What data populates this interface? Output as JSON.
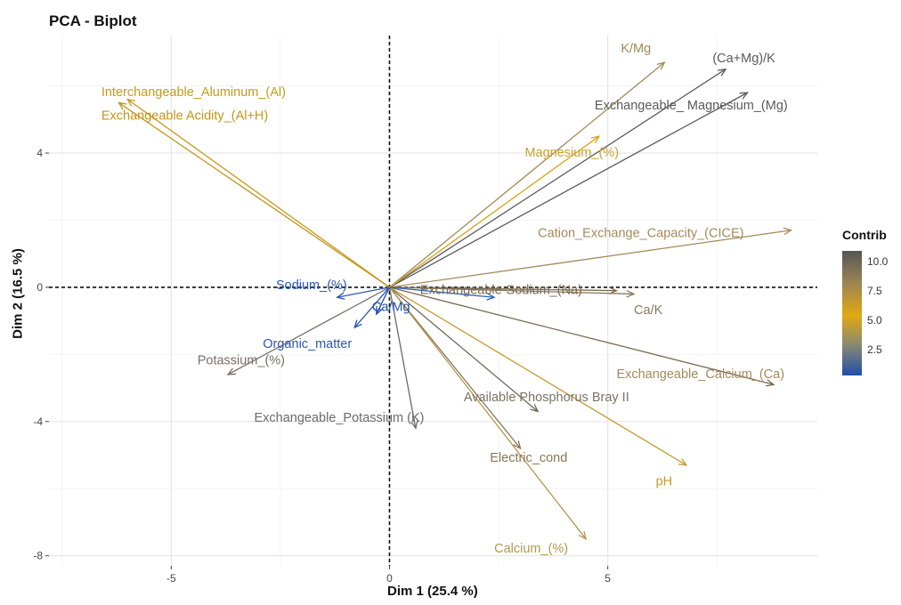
{
  "chart_data": {
    "type": "scatter",
    "title": "PCA - Biplot",
    "xlabel": "Dim 1 (25.4 %)",
    "ylabel": "Dim 2 (16.5 %)",
    "xlim": [
      -7.8,
      9.8
    ],
    "ylim": [
      -8.3,
      7.5
    ],
    "xticks": [
      -5,
      0,
      5
    ],
    "yticks": [
      -8,
      -4,
      0,
      4
    ],
    "grid": true,
    "legend": {
      "title": "Contrib",
      "placement": "right",
      "ticks": [
        "10.0",
        "7.5",
        "5.0",
        "2.5"
      ],
      "tick_values": [
        10.0,
        7.5,
        5.0,
        2.5
      ],
      "range": [
        0.4,
        11.0
      ]
    },
    "vectors": [
      {
        "label": "K/Mg",
        "x": 6.3,
        "y": 6.7,
        "contrib": 7.2,
        "color": "#a08a58"
      },
      {
        "label": "(Ca+Mg)/K",
        "x": 7.7,
        "y": 6.5,
        "contrib": 10.6,
        "color": "#5a5a5a"
      },
      {
        "label": "Exchangeable_ Magnesium_(Mg)",
        "x": 8.2,
        "y": 5.8,
        "contrib": 10.3,
        "color": "#5a5a5a"
      },
      {
        "label": "Magnesium_(%)",
        "x": 4.8,
        "y": 4.5,
        "contrib": 5.6,
        "color": "#d4a41a"
      },
      {
        "label": "Cation_Exchange_Capacity_(CICE)",
        "x": 9.2,
        "y": 1.7,
        "contrib": 7.8,
        "color": "#a58a58"
      },
      {
        "label": "Exchangeable-Sodium_(Na)",
        "x": 5.2,
        "y": -0.1,
        "contrib": 9.5,
        "color": "#7b6a50"
      },
      {
        "label": "Ca/K",
        "x": 5.6,
        "y": -0.2,
        "contrib": 8.0,
        "color": "#8a7a60"
      },
      {
        "label": "Exchangeable_Calcium_(Ca)",
        "x": 8.8,
        "y": -2.9,
        "contrib": 9.3,
        "color": "#7a6a50"
      },
      {
        "label": "Available Phosphorus Bray II",
        "x": 3.4,
        "y": -3.7,
        "contrib": 8.8,
        "color": "#6e6658"
      },
      {
        "label": "pH",
        "x": 6.8,
        "y": -5.3,
        "contrib": 6.6,
        "color": "#c49a2c"
      },
      {
        "label": "Electric_cond",
        "x": 3.0,
        "y": -4.8,
        "contrib": 8.4,
        "color": "#8a7656"
      },
      {
        "label": "Calcium_(%)",
        "x": 4.5,
        "y": -7.5,
        "contrib": 7.4,
        "color": "#b2984e"
      },
      {
        "label": "Exchangeable_Potassium (K)",
        "x": 0.6,
        "y": -4.2,
        "contrib": 9.8,
        "color": "#6a6a6a"
      },
      {
        "label": "Potassium_(%)",
        "x": -3.7,
        "y": -2.6,
        "contrib": 8.9,
        "color": "#7a6e68"
      },
      {
        "label": "Organic_matter",
        "x": -0.8,
        "y": -1.2,
        "contrib": 1.2,
        "color": "#2a58b0"
      },
      {
        "label": "Ca/Mg",
        "x": -0.3,
        "y": -0.8,
        "contrib": 0.8,
        "color": "#1f4fa8"
      },
      {
        "label": "Sodium_(%)",
        "x": -1.2,
        "y": -0.3,
        "contrib": 1.1,
        "color": "#2a58b0"
      },
      {
        "label": "Exchangeable-Sodium_(Na)",
        "x": 2.4,
        "y": -0.3,
        "contrib": 1.5,
        "color": "#2a62c0"
      },
      {
        "label": "Interchangeable_Aluminum_(Al)",
        "x": -6.0,
        "y": 5.6,
        "contrib": 5.2,
        "color": "#c79a1a"
      },
      {
        "label": "Exchangeable Acidity_(Al+H)",
        "x": -6.2,
        "y": 5.5,
        "contrib": 5.0,
        "color": "#c49418"
      }
    ],
    "labels": [
      {
        "text": "K/Mg",
        "x": 5.3,
        "y": 7.0,
        "color": "#a08a58"
      },
      {
        "text": "(Ca+Mg)/K",
        "x": 7.4,
        "y": 6.7,
        "color": "#5a5a5a"
      },
      {
        "text": "Exchangeable_ Magnesium_(Mg)",
        "x": 4.7,
        "y": 5.3,
        "color": "#5a5a5a"
      },
      {
        "text": "Magnesium_(%)",
        "x": 3.1,
        "y": 3.9,
        "color": "#c9a32d"
      },
      {
        "text": "Cation_Exchange_Capacity_(CICE)",
        "x": 3.4,
        "y": 1.5,
        "color": "#a58a58"
      },
      {
        "text": "Exchangeable-Sodium_(Na)",
        "x": 0.7,
        "y": -0.2,
        "color": "#7b6a50"
      },
      {
        "text": "Ca/K",
        "x": 5.6,
        "y": -0.8,
        "color": "#8a7a60"
      },
      {
        "text": "Exchangeable_Calcium_(Ca)",
        "x": 5.2,
        "y": -2.7,
        "color": "#a58a58"
      },
      {
        "text": "Available Phosphorus Bray II",
        "x": 1.7,
        "y": -3.4,
        "color": "#7a7466"
      },
      {
        "text": "pH",
        "x": 6.1,
        "y": -5.9,
        "color": "#c49a2c"
      },
      {
        "text": "Electric_cond",
        "x": 2.3,
        "y": -5.2,
        "color": "#8a7656"
      },
      {
        "text": "Calcium_(%)",
        "x": 2.4,
        "y": -7.9,
        "color": "#b2984e"
      },
      {
        "text": "Exchangeable_Potassium (K)",
        "x": -3.1,
        "y": -4.0,
        "color": "#6a6a6a"
      },
      {
        "text": "Potassium_(%)",
        "x": -4.4,
        "y": -2.3,
        "color": "#7a6e68"
      },
      {
        "text": "Organic_matter",
        "x": -2.9,
        "y": -1.8,
        "color": "#2a58b0"
      },
      {
        "text": "Ca/Mg",
        "x": -0.4,
        "y": -0.7,
        "color": "#1f4fa8"
      },
      {
        "text": "Sodium_(%)",
        "x": -2.6,
        "y": -0.05,
        "color": "#2a58b0"
      },
      {
        "text": "Interchangeable_Aluminum_(Al)",
        "x": -6.6,
        "y": 5.7,
        "color": "#c79a1a"
      },
      {
        "text": "Exchangeable Acidity_(Al+H)",
        "x": -6.6,
        "y": 5.0,
        "color": "#c49418"
      }
    ]
  }
}
